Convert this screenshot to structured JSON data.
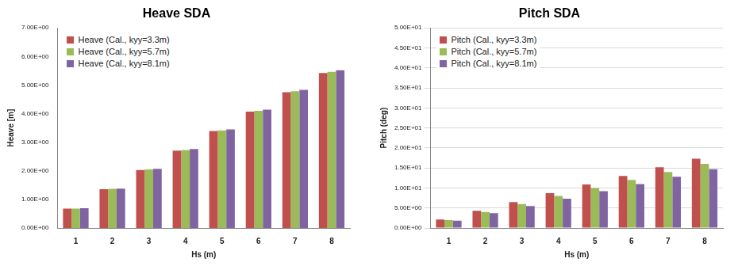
{
  "chart_data": [
    {
      "type": "bar",
      "title": "Heave SDA",
      "x_label": "Hs (m)",
      "y_label": "Heave [m]",
      "categories": [
        "1",
        "2",
        "3",
        "4",
        "5",
        "6",
        "7",
        "8"
      ],
      "series": [
        {
          "name": "Heave (Cal., kyy=3.3m)",
          "color": "#c0504d",
          "values": [
            0.68,
            1.36,
            2.03,
            2.71,
            3.39,
            4.07,
            4.75,
            5.42
          ]
        },
        {
          "name": "Heave (Cal., kyy=5.7m)",
          "color": "#9bbb59",
          "values": [
            0.68,
            1.37,
            2.05,
            2.73,
            3.41,
            4.1,
            4.78,
            5.46
          ]
        },
        {
          "name": "Heave (Cal., kyy=8.1m)",
          "color": "#8064a2",
          "values": [
            0.69,
            1.38,
            2.07,
            2.76,
            3.45,
            4.14,
            4.83,
            5.52
          ]
        }
      ],
      "ylim": [
        0,
        7
      ],
      "yticks": [
        {
          "value": 0,
          "label": "0.00E+00"
        },
        {
          "value": 1,
          "label": "1.00E+00"
        },
        {
          "value": 2,
          "label": "2.00E+00"
        },
        {
          "value": 3,
          "label": "3.00E+00"
        },
        {
          "value": 4,
          "label": "4.00E+00"
        },
        {
          "value": 5,
          "label": "5.00E+00"
        },
        {
          "value": 6,
          "label": "6.00E+00"
        },
        {
          "value": 7,
          "label": "7.00E+00"
        }
      ],
      "grid": false,
      "legend": "top-left"
    },
    {
      "type": "bar",
      "title": "Pitch SDA",
      "x_label": "Hs (m)",
      "y_label": "Pitch (deg)",
      "categories": [
        "1",
        "2",
        "3",
        "4",
        "5",
        "6",
        "7",
        "8"
      ],
      "series": [
        {
          "name": "Pitch (Cal., kyy=3.3m)",
          "color": "#c0504d",
          "values": [
            2.15,
            4.3,
            6.5,
            8.7,
            10.9,
            13.0,
            15.2,
            17.3
          ]
        },
        {
          "name": "Pitch (Cal., kyy=5.7m)",
          "color": "#9bbb59",
          "values": [
            2.0,
            4.0,
            6.0,
            8.0,
            10.0,
            12.0,
            14.0,
            16.0
          ]
        },
        {
          "name": "Pitch (Cal., kyy=8.1m)",
          "color": "#8064a2",
          "values": [
            1.85,
            3.7,
            5.5,
            7.3,
            9.2,
            11.0,
            12.8,
            14.7
          ]
        }
      ],
      "ylim": [
        0,
        50
      ],
      "yticks": [
        {
          "value": 0,
          "label": "0.00E+00"
        },
        {
          "value": 5,
          "label": "5.00E+00"
        },
        {
          "value": 10,
          "label": "1.00E+01"
        },
        {
          "value": 15,
          "label": "1.50E+01"
        },
        {
          "value": 20,
          "label": "2.00E+01"
        },
        {
          "value": 25,
          "label": "2.50E+01"
        },
        {
          "value": 30,
          "label": "3.00E+01"
        },
        {
          "value": 35,
          "label": "3.50E+01"
        },
        {
          "value": 40,
          "label": "4.00E+01"
        },
        {
          "value": 45,
          "label": "4.50E+01"
        },
        {
          "value": 50,
          "label": "5.00E+01"
        }
      ],
      "grid": true,
      "legend": "top-left"
    }
  ]
}
